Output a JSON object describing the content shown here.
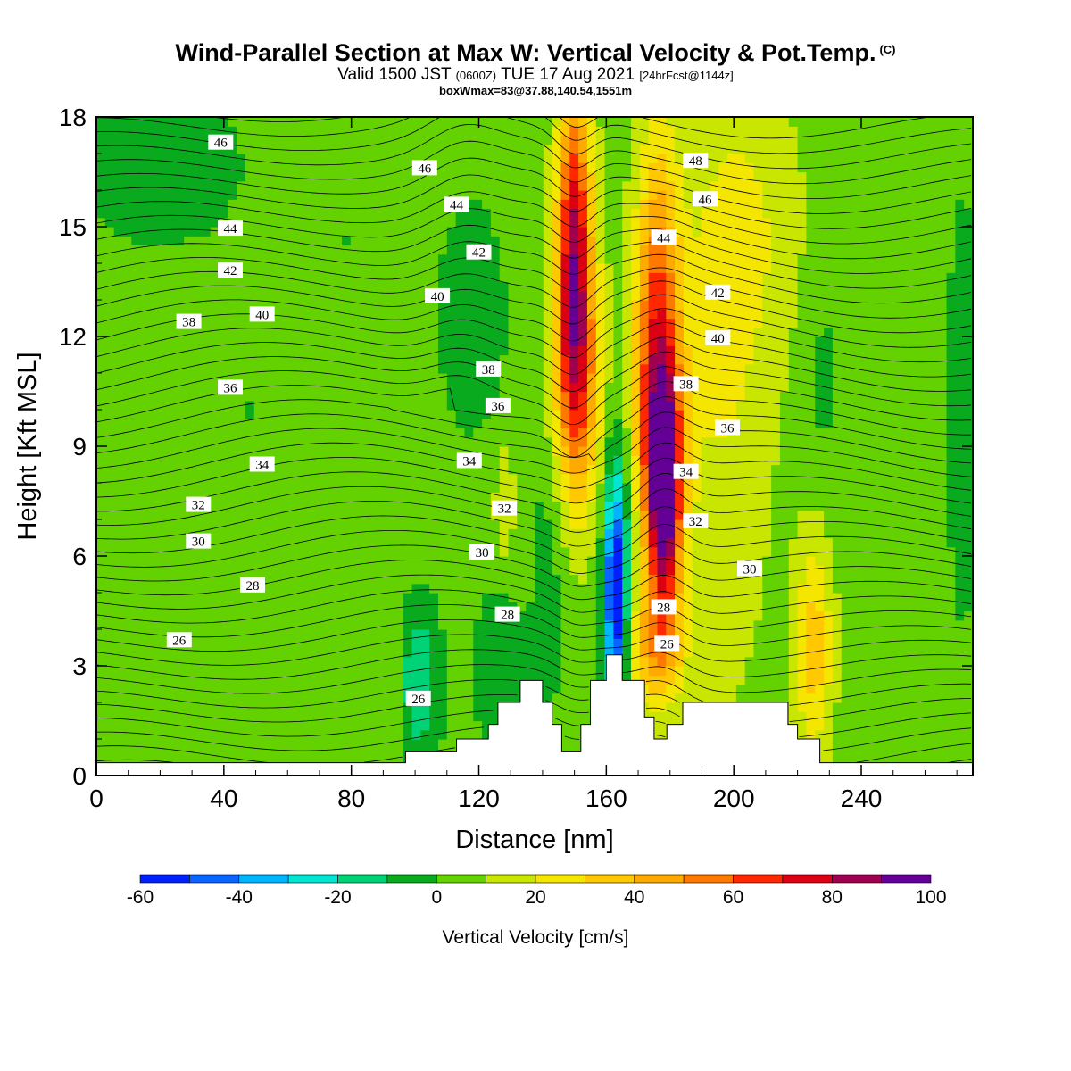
{
  "chart_data": {
    "type": "heatmap",
    "title": "Wind-Parallel Section at Max W: Vertical Velocity & Pot.Temp.",
    "title_mark": "(C)",
    "subtitle_main": "Valid 1500 JST",
    "subtitle_utc": "(0600Z)",
    "subtitle_date": "TUE 17 Aug 2021",
    "subtitle_fcst": "[24hrFcst@1144z]",
    "box_info": "boxWmax=83@37.88,140.54,1551m",
    "xlabel": "Distance [nm]",
    "ylabel": "Height [Kft MSL]",
    "xlim": [
      0,
      275
    ],
    "ylim": [
      0,
      18
    ],
    "x_ticks": [
      0,
      40,
      80,
      120,
      160,
      200,
      240
    ],
    "y_ticks": [
      0,
      3,
      6,
      9,
      12,
      15,
      18
    ],
    "colorbar": {
      "title": "Vertical Velocity [cm/s]",
      "ticks": [
        -60,
        -40,
        -20,
        0,
        20,
        40,
        60,
        80,
        100
      ],
      "bounds": [
        -60,
        -50,
        -40,
        -30,
        -20,
        -10,
        0,
        10,
        20,
        30,
        40,
        50,
        60,
        70,
        80,
        90,
        100
      ],
      "colors": [
        "#0020ff",
        "#0a64ff",
        "#00b4ff",
        "#00e6d2",
        "#00d278",
        "#0aaa1e",
        "#64d200",
        "#c8e600",
        "#f5e600",
        "#ffc800",
        "#ffaa00",
        "#ff7800",
        "#ff2800",
        "#dc0014",
        "#a00050",
        "#640096"
      ]
    },
    "background_w": 5,
    "w_features": [
      {
        "x": 20,
        "z": 16.8,
        "rx": 24,
        "rz": 2.2,
        "w": -15
      },
      {
        "x": 78,
        "z": 14.6,
        "rx": 22,
        "rz": 2.4,
        "w": -5
      },
      {
        "x": 118,
        "z": 12.5,
        "rx": 10,
        "rz": 3.0,
        "w": -15
      },
      {
        "x": 48,
        "z": 10.0,
        "rx": 12,
        "rz": 2.5,
        "w": -5
      },
      {
        "x": 100,
        "z": 2.6,
        "rx": 8,
        "rz": 2.2,
        "w": -25
      },
      {
        "x": 126,
        "z": 3.0,
        "rx": 8,
        "rz": 2.0,
        "w": -15
      },
      {
        "x": 142,
        "z": 6.0,
        "rx": 6,
        "rz": 5.0,
        "w": -10
      },
      {
        "x": 163,
        "z": 4.6,
        "rx": 3.2,
        "rz": 2.8,
        "w": -55
      },
      {
        "x": 163,
        "z": 6.5,
        "rx": 4.5,
        "rz": 3.8,
        "w": -25
      },
      {
        "x": 150,
        "z": 14.5,
        "rx": 5.5,
        "rz": 4.5,
        "w": 72
      },
      {
        "x": 151,
        "z": 10.5,
        "rx": 8,
        "rz": 3.5,
        "w": 42
      },
      {
        "x": 178,
        "z": 7.5,
        "rx": 5.5,
        "rz": 3.2,
        "w": 82
      },
      {
        "x": 176,
        "z": 10.0,
        "rx": 8,
        "rz": 3.5,
        "w": 45
      },
      {
        "x": 176,
        "z": 14.0,
        "rx": 7,
        "rz": 4.0,
        "w": 38
      },
      {
        "x": 175,
        "z": 3.5,
        "rx": 9,
        "rz": 1.6,
        "w": 35
      },
      {
        "x": 94,
        "z": 2.5,
        "rx": 4,
        "rz": 2.5,
        "w": 15
      },
      {
        "x": 128,
        "z": 7.5,
        "rx": 3,
        "rz": 1.5,
        "w": 15
      },
      {
        "x": 225,
        "z": 3.5,
        "rx": 6,
        "rz": 3.0,
        "w": 30
      },
      {
        "x": 196,
        "z": 10.0,
        "rx": 16,
        "rz": 8.0,
        "w": 14
      },
      {
        "x": 205,
        "z": 15.0,
        "rx": 18,
        "rz": 4.0,
        "w": 12
      },
      {
        "x": 228,
        "z": 11.0,
        "rx": 7,
        "rz": 3.0,
        "w": -8
      },
      {
        "x": 272,
        "z": 10.0,
        "rx": 6,
        "rz": 7.0,
        "w": -10
      },
      {
        "x": 38,
        "z": 5.0,
        "rx": 2.5,
        "rz": 1.5,
        "w": -4
      }
    ],
    "terrain_x": [
      0,
      97,
      97,
      113,
      113,
      123,
      123,
      126,
      126,
      133,
      133,
      140,
      140,
      143,
      143,
      146,
      146,
      152,
      152,
      155,
      155,
      160,
      160,
      165,
      165,
      172,
      172,
      175,
      175,
      179,
      179,
      184,
      184,
      192,
      192,
      217,
      217,
      220,
      220,
      227,
      227,
      275
    ],
    "terrain_z": [
      0.35,
      0.35,
      0.65,
      0.65,
      1.0,
      1.0,
      1.4,
      1.4,
      2.0,
      2.0,
      2.6,
      2.6,
      2.0,
      2.0,
      1.4,
      1.4,
      0.65,
      0.65,
      1.4,
      1.4,
      2.6,
      2.6,
      3.3,
      3.3,
      2.6,
      2.6,
      1.6,
      1.6,
      1.0,
      1.0,
      1.4,
      1.4,
      2.0,
      2.0,
      2.0,
      2.0,
      1.4,
      1.4,
      1.0,
      1.0,
      0.35,
      0.35
    ],
    "theta_levels": [
      24.5,
      25,
      25.5,
      26,
      26.5,
      27,
      27.5,
      28,
      28.5,
      29,
      29.5,
      30,
      30.5,
      31,
      31.5,
      32,
      32.5,
      33,
      33.5,
      34,
      34.5,
      35,
      35.5,
      36,
      36.5,
      37,
      37.5,
      38,
      38.5,
      39,
      39.5,
      40,
      40.5,
      41,
      41.5,
      42,
      42.5,
      43,
      43.5,
      44,
      44.5,
      45,
      45.5,
      46,
      46.5,
      47,
      47.5,
      48
    ],
    "contour_labels": [
      {
        "text": "46",
        "x": 39,
        "z": 17.3
      },
      {
        "text": "46",
        "x": 103,
        "z": 16.6
      },
      {
        "text": "44",
        "x": 113,
        "z": 15.6
      },
      {
        "text": "42",
        "x": 120,
        "z": 14.3
      },
      {
        "text": "44",
        "x": 42,
        "z": 14.95
      },
      {
        "text": "42",
        "x": 42,
        "z": 13.8
      },
      {
        "text": "40",
        "x": 52,
        "z": 12.6
      },
      {
        "text": "38",
        "x": 29,
        "z": 12.4
      },
      {
        "text": "40",
        "x": 107,
        "z": 13.1
      },
      {
        "text": "38",
        "x": 123,
        "z": 11.1
      },
      {
        "text": "36",
        "x": 42,
        "z": 10.6
      },
      {
        "text": "36",
        "x": 126,
        "z": 10.1
      },
      {
        "text": "34",
        "x": 52,
        "z": 8.5
      },
      {
        "text": "34",
        "x": 117,
        "z": 8.6
      },
      {
        "text": "32",
        "x": 32,
        "z": 7.4
      },
      {
        "text": "30",
        "x": 32,
        "z": 6.4
      },
      {
        "text": "32",
        "x": 128,
        "z": 7.3
      },
      {
        "text": "30",
        "x": 121,
        "z": 6.1
      },
      {
        "text": "28",
        "x": 49,
        "z": 5.2
      },
      {
        "text": "28",
        "x": 129,
        "z": 4.4
      },
      {
        "text": "26",
        "x": 26,
        "z": 3.7
      },
      {
        "text": "26",
        "x": 101,
        "z": 2.1
      },
      {
        "text": "48",
        "x": 188,
        "z": 16.8
      },
      {
        "text": "46",
        "x": 191,
        "z": 15.75
      },
      {
        "text": "44",
        "x": 178,
        "z": 14.7
      },
      {
        "text": "42",
        "x": 195,
        "z": 13.2
      },
      {
        "text": "40",
        "x": 195,
        "z": 11.95
      },
      {
        "text": "38",
        "x": 185,
        "z": 10.7
      },
      {
        "text": "36",
        "x": 198,
        "z": 9.5
      },
      {
        "text": "34",
        "x": 185,
        "z": 8.3
      },
      {
        "text": "32",
        "x": 188,
        "z": 6.95
      },
      {
        "text": "30",
        "x": 205,
        "z": 5.65
      },
      {
        "text": "28",
        "x": 178,
        "z": 4.6
      },
      {
        "text": "26",
        "x": 179,
        "z": 3.6
      }
    ]
  }
}
